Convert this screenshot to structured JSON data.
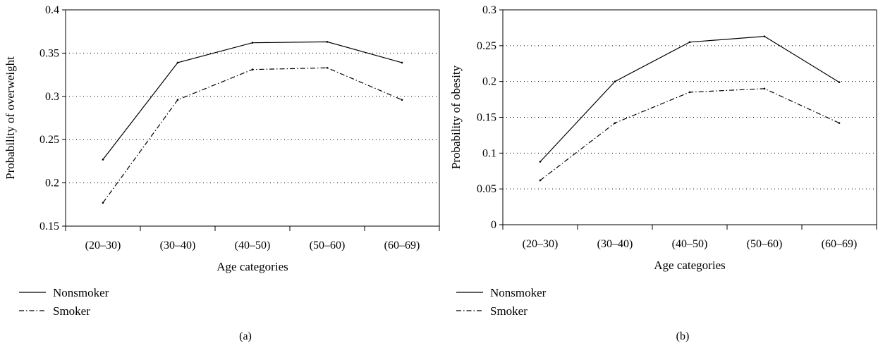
{
  "chart_data": [
    {
      "type": "line",
      "panel_label": "(a)",
      "categories": [
        "(20–30)",
        "(30–40)",
        "(40–50)",
        "(50–60)",
        "(60–69)"
      ],
      "series": [
        {
          "name": "Nonsmoker",
          "values": [
            0.227,
            0.339,
            0.362,
            0.363,
            0.339
          ],
          "line_style": "solid"
        },
        {
          "name": "Smoker",
          "values": [
            0.177,
            0.296,
            0.331,
            0.333,
            0.296
          ],
          "line_style": "dash-dot"
        }
      ],
      "xlabel": "Age categories",
      "ylabel": "Probability of overweight",
      "ylim": [
        0.15,
        0.4
      ],
      "yticks": [
        0.15,
        0.2,
        0.25,
        0.3,
        0.35,
        0.4
      ],
      "ytick_labels": [
        "0.15",
        "0.2",
        "0.25",
        "0.3",
        "0.35",
        "0.4"
      ],
      "grid": "horizontal dotted",
      "legend_position": "bottom-left"
    },
    {
      "type": "line",
      "panel_label": "(b)",
      "categories": [
        "(20–30)",
        "(30–40)",
        "(40–50)",
        "(50–60)",
        "(60–69)"
      ],
      "series": [
        {
          "name": "Nonsmoker",
          "values": [
            0.088,
            0.2,
            0.255,
            0.263,
            0.199
          ],
          "line_style": "solid"
        },
        {
          "name": "Smoker",
          "values": [
            0.062,
            0.142,
            0.185,
            0.19,
            0.142
          ],
          "line_style": "dash-dot"
        }
      ],
      "xlabel": "Age categories",
      "ylabel": "Probability of obesity",
      "ylim": [
        0,
        0.3
      ],
      "yticks": [
        0,
        0.05,
        0.1,
        0.15,
        0.2,
        0.25,
        0.3
      ],
      "ytick_labels": [
        "0",
        "0.05",
        "0.1",
        "0.15",
        "0.2",
        "0.25",
        "0.3"
      ],
      "grid": "horizontal dotted",
      "legend_position": "bottom-left"
    }
  ]
}
